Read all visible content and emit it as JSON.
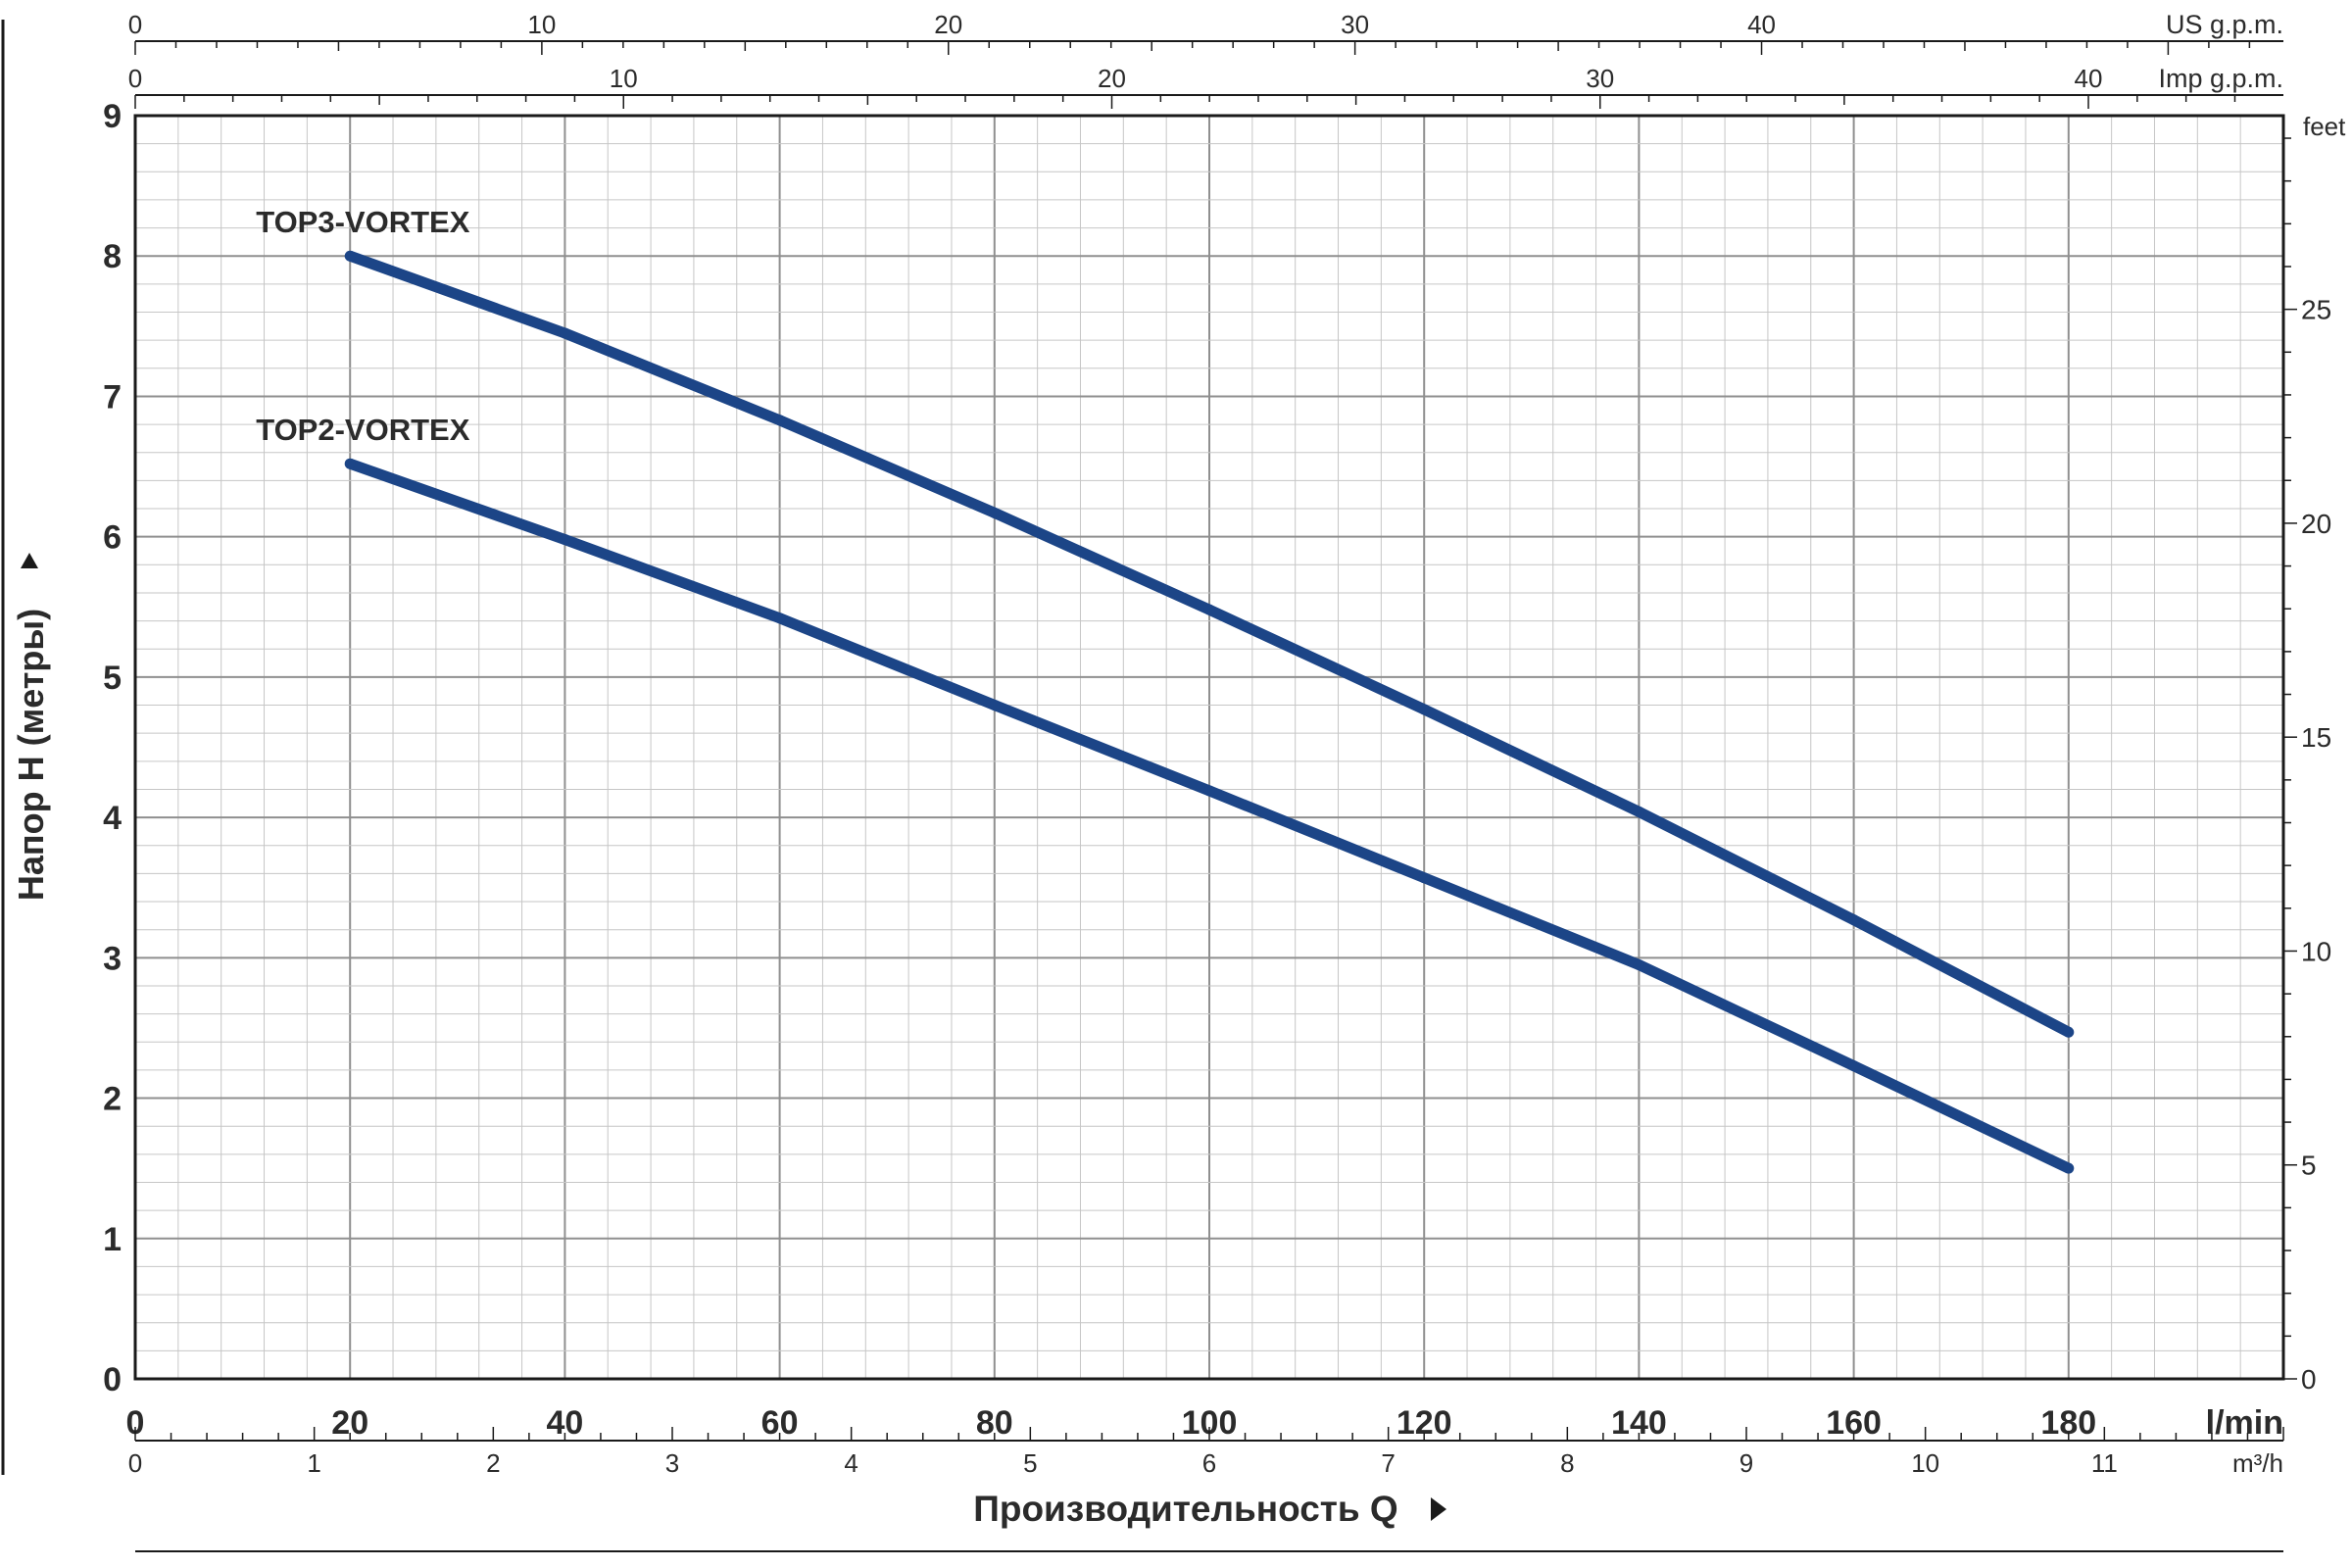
{
  "chart_data": {
    "type": "line",
    "title": "",
    "xlabel": "Производительность Q",
    "ylabel": "Напор H (метры)",
    "x_unit": "l/min",
    "xlim": [
      0,
      200
    ],
    "ylim": [
      0,
      9
    ],
    "x_ticks": [
      0,
      20,
      40,
      60,
      80,
      100,
      120,
      140,
      160,
      180
    ],
    "y_ticks": [
      0,
      1,
      2,
      3,
      4,
      5,
      6,
      7,
      8,
      9
    ],
    "grid": true,
    "series": [
      {
        "name": "TOP3-VORTEX",
        "color": "#1c4587",
        "x": [
          20,
          40,
          60,
          80,
          100,
          120,
          140,
          160,
          180
        ],
        "y": [
          8.0,
          7.45,
          6.83,
          6.17,
          5.48,
          4.77,
          4.04,
          3.27,
          2.47
        ]
      },
      {
        "name": "TOP2-VORTEX",
        "color": "#1c4587",
        "x": [
          20,
          40,
          60,
          80,
          100,
          120,
          140,
          160,
          180
        ],
        "y": [
          6.52,
          5.98,
          5.42,
          4.8,
          4.19,
          3.57,
          2.95,
          2.23,
          1.5
        ]
      }
    ],
    "secondary_axes": {
      "us_gpm": {
        "label": "US g.p.m.",
        "ticks": [
          0,
          10,
          20,
          30,
          40
        ],
        "factor": 0.264172
      },
      "imp_gpm": {
        "label": "Imp g.p.m.",
        "ticks": [
          0,
          10,
          20,
          30,
          40
        ],
        "factor": 0.219969
      },
      "m3h": {
        "label": "m³/h",
        "ticks": [
          0,
          1,
          2,
          3,
          4,
          5,
          6,
          7,
          8,
          9,
          10,
          11
        ],
        "factor": 0.06
      },
      "feet": {
        "label": "feet",
        "ticks": [
          0,
          5,
          10,
          15,
          20,
          25
        ],
        "factor": 3.28084
      }
    }
  }
}
